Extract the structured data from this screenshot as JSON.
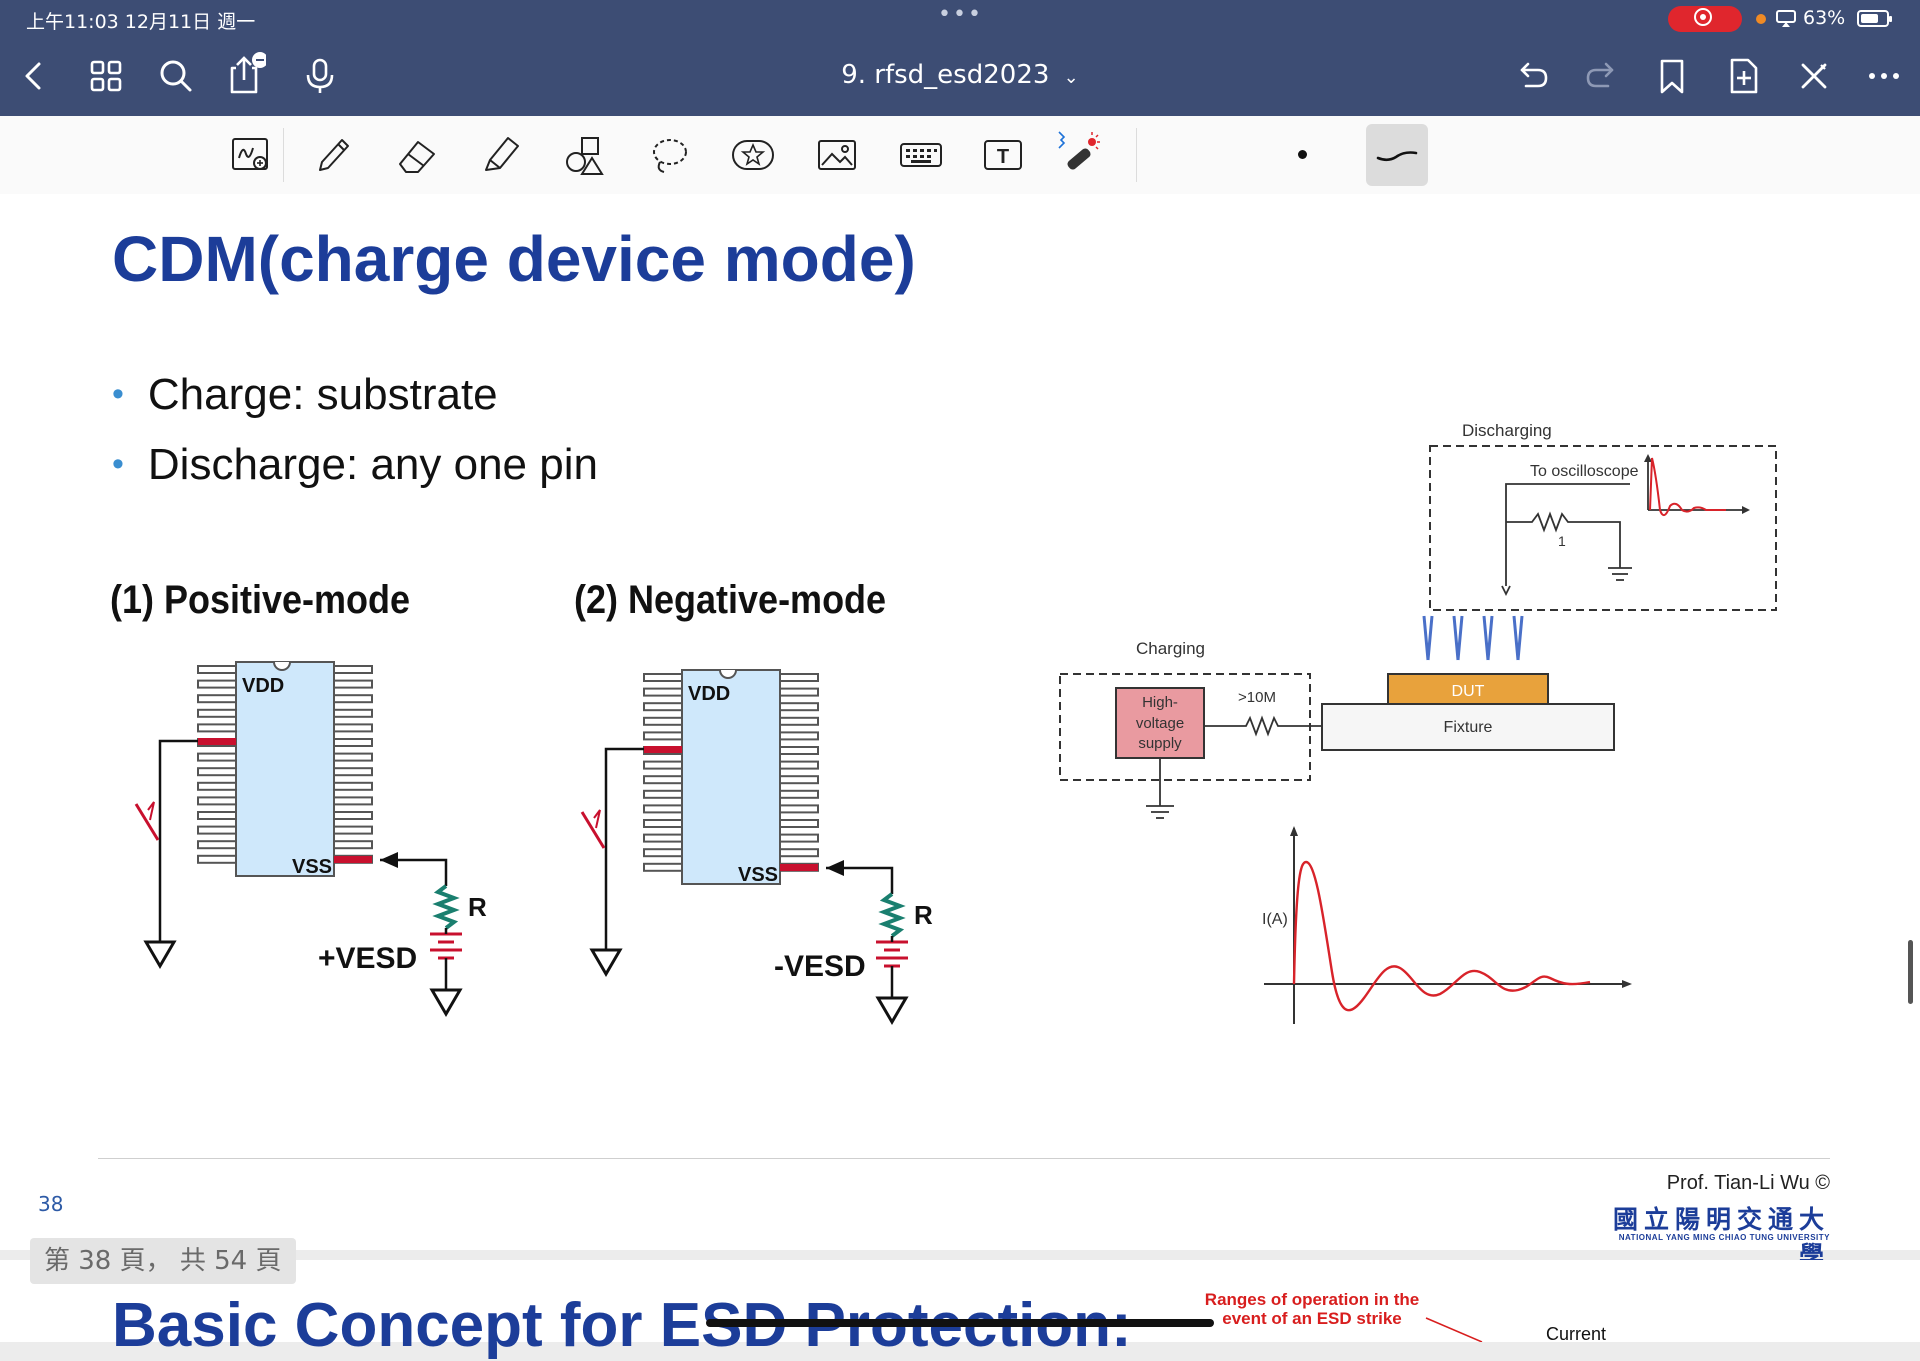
{
  "status_bar": {
    "time": "上午11:03   12月11日 週一",
    "battery_pct": "63%",
    "dots": "•••"
  },
  "nav": {
    "doc_title": "9. rfsd_esd2023",
    "title_chevron": "⌄",
    "left_icons": [
      "back-chevron-icon",
      "grid-icon",
      "search-icon",
      "share-icon",
      "microphone-icon"
    ],
    "right_icons": [
      "undo-icon",
      "redo-icon",
      "bookmark-icon",
      "add-page-icon",
      "close-x-icon",
      "more-icon"
    ]
  },
  "toolbar": {
    "tools": [
      "handwriting-zoom-icon",
      "pen-icon",
      "eraser-icon",
      "highlighter-icon",
      "shapes-icon",
      "lasso-icon",
      "sticker-icon",
      "image-icon",
      "keyboard-icon",
      "text-box-icon",
      "laser-pointer-icon"
    ],
    "selected_color": "#111111",
    "accent": "#3d4d74"
  },
  "slide": {
    "title": "CDM(charge device mode)",
    "bullets": [
      "Charge: substrate",
      "Discharge: any one pin"
    ],
    "positive_mode_label": "(1) Positive-mode",
    "negative_mode_label": "(2) Negative-mode",
    "pos_diagram": {
      "vdd": "VDD",
      "vss": "VSS",
      "r": "R",
      "source": "+VESD"
    },
    "neg_diagram": {
      "vdd": "VDD",
      "vss": "VSS",
      "r": "R",
      "source": "-VESD"
    },
    "setup": {
      "discharging": "Discharging",
      "to_osc": "To oscilloscope",
      "one": "1",
      "charging": "Charging",
      "hv1": "High-",
      "hv2": "voltage",
      "hv3": "supply",
      "r10m": ">10M",
      "dut": "DUT",
      "fixture": "Fixture"
    },
    "waveform_ylabel": "I(A)",
    "page_number": "38",
    "author": "Prof. Tian-Li Wu ©",
    "university_cn": "國立陽明交通大學",
    "university_en": "NATIONAL YANG MING CHIAO TUNG UNIVERSITY"
  },
  "page_indicator": "第 38 頁，  共 54 頁",
  "next_slide": {
    "title": "Basic Concept for ESD Protection:",
    "red_note": "Ranges of operation in the event of an ESD strike",
    "current_label": "Current"
  },
  "colors": {
    "header_bg": "#3d4d74",
    "title_blue": "#1c3d99",
    "chip_fill": "#cfe8fb",
    "pin_red": "#c8102e",
    "resistor_green": "#1a7f6f",
    "dut_orange": "#e8a23c",
    "hv_pink": "#e99aa0",
    "wave_red": "#d8232a"
  }
}
